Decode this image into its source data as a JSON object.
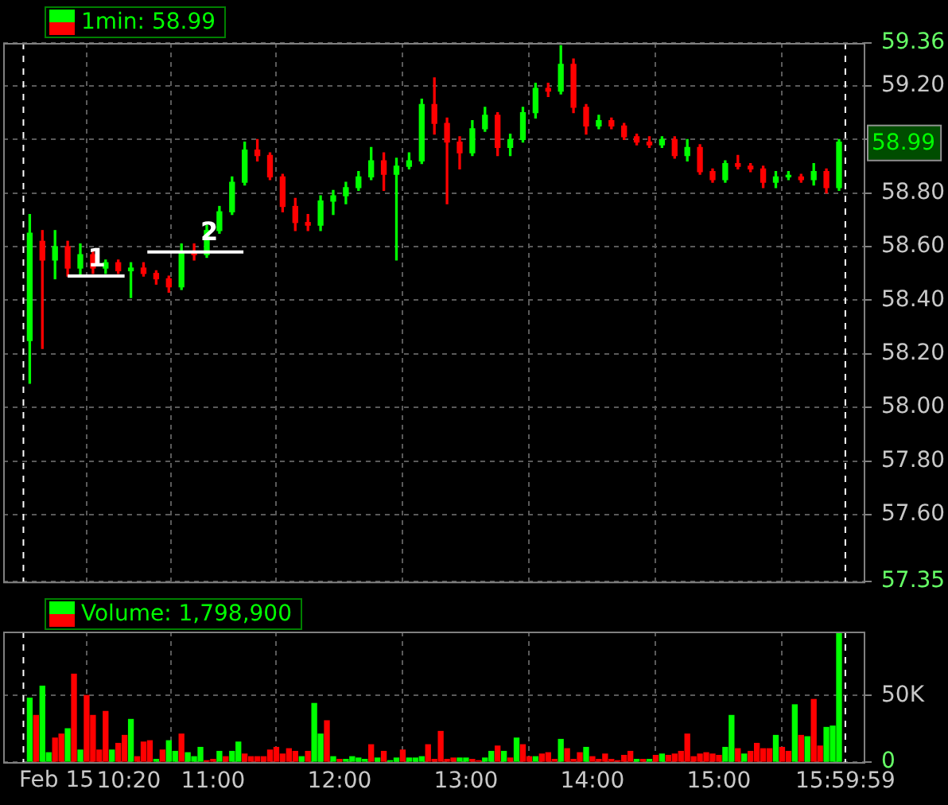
{
  "chart_data": [
    {
      "type": "candlestick",
      "title": "1min: 58.99",
      "x": [
        9.55,
        9.65,
        9.75,
        9.85,
        9.95,
        10.05,
        10.15,
        10.25,
        10.35,
        10.45,
        10.55,
        10.65,
        10.75,
        10.85,
        10.95,
        11.05,
        11.15,
        11.25,
        11.35,
        11.45,
        11.55,
        11.65,
        11.75,
        11.85,
        11.95,
        12.05,
        12.15,
        12.25,
        12.35,
        12.45,
        12.55,
        12.65,
        12.75,
        12.85,
        12.95,
        13.05,
        13.15,
        13.25,
        13.35,
        13.45,
        13.55,
        13.65,
        13.75,
        13.85,
        13.95,
        14.05,
        14.15,
        14.25,
        14.35,
        14.45,
        14.55,
        14.65,
        14.75,
        14.85,
        14.95,
        15.05,
        15.15,
        15.25,
        15.35,
        15.45,
        15.55,
        15.65,
        15.75,
        15.85,
        15.95
      ],
      "ohlc": [
        [
          58.25,
          58.72,
          58.09,
          58.65
        ],
        [
          58.62,
          58.66,
          58.22,
          58.55
        ],
        [
          58.55,
          58.66,
          58.48,
          58.6
        ],
        [
          58.6,
          58.62,
          58.49,
          58.52
        ],
        [
          58.52,
          58.61,
          58.49,
          58.57
        ],
        [
          58.57,
          58.58,
          58.5,
          58.52
        ],
        [
          58.52,
          58.55,
          58.5,
          58.54
        ],
        [
          58.54,
          58.55,
          58.5,
          58.51
        ],
        [
          58.51,
          58.54,
          58.41,
          58.52
        ],
        [
          58.52,
          58.54,
          58.49,
          58.5
        ],
        [
          58.5,
          58.51,
          58.46,
          58.48
        ],
        [
          58.48,
          58.49,
          58.43,
          58.45
        ],
        [
          58.45,
          58.61,
          58.44,
          58.58
        ],
        [
          58.58,
          58.61,
          58.55,
          58.57
        ],
        [
          58.57,
          58.68,
          58.56,
          58.66
        ],
        [
          58.66,
          58.75,
          58.65,
          58.73
        ],
        [
          58.73,
          58.86,
          58.72,
          58.84
        ],
        [
          58.84,
          58.99,
          58.83,
          58.96
        ],
        [
          58.96,
          59.0,
          58.92,
          58.94
        ],
        [
          58.94,
          58.95,
          58.85,
          58.86
        ],
        [
          58.86,
          58.87,
          58.73,
          58.75
        ],
        [
          58.75,
          58.78,
          58.66,
          58.69
        ],
        [
          58.69,
          58.72,
          58.66,
          58.68
        ],
        [
          58.68,
          58.79,
          58.66,
          58.77
        ],
        [
          58.77,
          58.81,
          58.72,
          58.79
        ],
        [
          58.79,
          58.84,
          58.76,
          58.82
        ],
        [
          58.82,
          58.88,
          58.81,
          58.86
        ],
        [
          58.86,
          58.97,
          58.85,
          58.92
        ],
        [
          58.92,
          58.95,
          58.81,
          58.87
        ],
        [
          58.87,
          58.93,
          58.55,
          58.9
        ],
        [
          58.9,
          58.95,
          58.89,
          58.92
        ],
        [
          58.92,
          59.15,
          58.91,
          59.13
        ],
        [
          59.13,
          59.23,
          59.02,
          59.06
        ],
        [
          59.06,
          59.08,
          58.76,
          58.99
        ],
        [
          58.99,
          59.01,
          58.89,
          58.95
        ],
        [
          58.95,
          59.07,
          58.94,
          59.04
        ],
        [
          59.04,
          59.12,
          59.03,
          59.09
        ],
        [
          59.09,
          59.1,
          58.94,
          58.97
        ],
        [
          58.97,
          59.02,
          58.94,
          59.0
        ],
        [
          59.0,
          59.12,
          58.99,
          59.1
        ],
        [
          59.1,
          59.21,
          59.08,
          59.19
        ],
        [
          59.19,
          59.21,
          59.16,
          59.18
        ],
        [
          59.18,
          59.35,
          59.17,
          59.28
        ],
        [
          59.28,
          59.3,
          59.1,
          59.12
        ],
        [
          59.12,
          59.13,
          59.02,
          59.05
        ],
        [
          59.05,
          59.09,
          59.04,
          59.07
        ],
        [
          59.07,
          59.08,
          59.04,
          59.05
        ],
        [
          59.05,
          59.06,
          59.0,
          59.01
        ],
        [
          59.01,
          59.02,
          58.98,
          58.99
        ],
        [
          58.99,
          59.01,
          58.97,
          58.98
        ],
        [
          58.98,
          59.01,
          58.97,
          59.0
        ],
        [
          59.0,
          59.01,
          58.93,
          58.94
        ],
        [
          58.94,
          59.0,
          58.92,
          58.97
        ],
        [
          58.97,
          58.98,
          58.87,
          58.88
        ],
        [
          58.88,
          58.89,
          58.84,
          58.85
        ],
        [
          58.85,
          58.92,
          58.84,
          58.91
        ],
        [
          58.91,
          58.94,
          58.89,
          58.9
        ],
        [
          58.9,
          58.91,
          58.88,
          58.89
        ],
        [
          58.89,
          58.9,
          58.82,
          58.84
        ],
        [
          58.84,
          58.88,
          58.82,
          58.86
        ],
        [
          58.86,
          58.88,
          58.85,
          58.86
        ],
        [
          58.86,
          58.87,
          58.84,
          58.85
        ],
        [
          58.85,
          58.91,
          58.83,
          58.88
        ],
        [
          58.88,
          58.89,
          58.8,
          58.82
        ],
        [
          58.82,
          59.0,
          58.81,
          58.99
        ]
      ],
      "colors": [
        "#00ff00",
        "#ff0000",
        "#00ff00",
        "#ff0000",
        "#00ff00",
        "#ff0000",
        "#00ff00",
        "#ff0000",
        "#00ff00",
        "#ff0000",
        "#ff0000",
        "#ff0000",
        "#00ff00",
        "#ff0000",
        "#00ff00",
        "#00ff00",
        "#00ff00",
        "#00ff00",
        "#ff0000",
        "#ff0000",
        "#ff0000",
        "#ff0000",
        "#ff0000",
        "#00ff00",
        "#00ff00",
        "#00ff00",
        "#00ff00",
        "#00ff00",
        "#ff0000",
        "#00ff00",
        "#00ff00",
        "#00ff00",
        "#ff0000",
        "#ff0000",
        "#ff0000",
        "#00ff00",
        "#00ff00",
        "#ff0000",
        "#00ff00",
        "#00ff00",
        "#00ff00",
        "#ff0000",
        "#00ff00",
        "#ff0000",
        "#ff0000",
        "#00ff00",
        "#ff0000",
        "#ff0000",
        "#ff0000",
        "#ff0000",
        "#00ff00",
        "#ff0000",
        "#00ff00",
        "#ff0000",
        "#ff0000",
        "#00ff00",
        "#ff0000",
        "#ff0000",
        "#ff0000",
        "#00ff00",
        "#00ff00",
        "#ff0000",
        "#00ff00",
        "#ff0000",
        "#00ff00"
      ],
      "series": [
        {
          "type": "line",
          "x": [
            9.85,
            10.3
          ],
          "values": [
            58.49,
            58.49
          ],
          "color": "#ffffff"
        },
        {
          "type": "line",
          "x": [
            10.48,
            11.24
          ],
          "values": [
            58.58,
            58.58
          ],
          "color": "#ffffff"
        }
      ],
      "annotations": [
        {
          "text": "1",
          "x": 10.08,
          "y": 58.55
        },
        {
          "text": "2",
          "x": 10.97,
          "y": 58.65
        },
        "58.99"
      ],
      "xlim": [
        9.34,
        16.145
      ],
      "xticks": [
        {
          "value": 10.333,
          "label": null
        },
        {
          "value": 11,
          "label": null
        },
        {
          "value": 12,
          "label": null
        },
        {
          "value": 13,
          "label": null
        },
        {
          "value": 14,
          "label": null
        },
        {
          "value": 15,
          "label": null
        },
        {
          "value": 15.9997,
          "label": null
        }
      ],
      "ylim": [
        57.35,
        59.36
      ],
      "yticks": [
        {
          "value": 59.36,
          "label": "59.36"
        },
        {
          "value": 59.2,
          "label": "59.20"
        },
        {
          "value": 59,
          "label": null
        },
        {
          "value": 58.8,
          "label": "58.80"
        },
        {
          "value": 58.6,
          "label": "58.60"
        },
        {
          "value": 58.4,
          "label": "58.40"
        },
        {
          "value": 58.2,
          "label": "58.20"
        },
        {
          "value": 58,
          "label": "58.00"
        },
        {
          "value": 57.8,
          "label": "57.80"
        },
        {
          "value": 57.6,
          "label": "57.60"
        },
        {
          "value": 57.35,
          "label": "57.35"
        }
      ],
      "ref_lines": [
        {
          "axis": "x",
          "value": 9.5,
          "color": "#ffffff",
          "line_style": "dashed"
        },
        {
          "axis": "x",
          "value": 16,
          "color": "#ffffff",
          "line_style": "dashed"
        }
      ],
      "grid": true,
      "tick_labels": "y"
    },
    {
      "type": "bar",
      "title": "Volume: 1,798,900",
      "x": [
        9.55,
        9.6,
        9.65,
        9.7,
        9.75,
        9.8,
        9.85,
        9.9,
        9.95,
        10,
        10.05,
        10.1,
        10.15,
        10.2,
        10.25,
        10.3,
        10.35,
        10.4,
        10.45,
        10.5,
        10.55,
        10.6,
        10.65,
        10.7,
        10.75,
        10.8,
        10.85,
        10.9,
        10.95,
        11,
        11.05,
        11.1,
        11.15,
        11.2,
        11.25,
        11.3,
        11.35,
        11.4,
        11.45,
        11.5,
        11.55,
        11.6,
        11.65,
        11.7,
        11.75,
        11.8,
        11.85,
        11.9,
        11.95,
        12,
        12.05,
        12.1,
        12.15,
        12.2,
        12.25,
        12.3,
        12.35,
        12.4,
        12.45,
        12.5,
        12.55,
        12.6,
        12.65,
        12.7,
        12.75,
        12.8,
        12.85,
        12.9,
        12.95,
        13,
        13.05,
        13.1,
        13.15,
        13.2,
        13.25,
        13.3,
        13.35,
        13.4,
        13.45,
        13.5,
        13.55,
        13.6,
        13.65,
        13.7,
        13.75,
        13.8,
        13.85,
        13.9,
        13.95,
        14,
        14.05,
        14.1,
        14.15,
        14.2,
        14.25,
        14.3,
        14.35,
        14.4,
        14.45,
        14.5,
        14.55,
        14.6,
        14.65,
        14.7,
        14.75,
        14.8,
        14.85,
        14.9,
        14.95,
        15,
        15.05,
        15.1,
        15.15,
        15.2,
        15.25,
        15.3,
        15.35,
        15.4,
        15.45,
        15.5,
        15.55,
        15.6,
        15.65,
        15.7,
        15.75,
        15.8,
        15.85,
        15.9,
        15.95
      ],
      "values": [
        48000,
        35000,
        57000,
        7000,
        18000,
        21000,
        25000,
        66000,
        9000,
        50000,
        35000,
        9000,
        38000,
        9000,
        14000,
        20000,
        32000,
        4000,
        15000,
        16000,
        2000,
        9000,
        16000,
        8000,
        21000,
        7000,
        4000,
        11000,
        1000,
        2000,
        8000,
        4000,
        8000,
        15000,
        6000,
        4000,
        4000,
        4000,
        9000,
        11000,
        6000,
        10000,
        8000,
        4000,
        8000,
        44000,
        21000,
        31000,
        4000,
        2000,
        2000,
        4000,
        3000,
        2000,
        13000,
        3000,
        8000,
        1000,
        3000,
        9000,
        3000,
        3000,
        4000,
        13000,
        2000,
        23000,
        2000,
        3000,
        3000,
        3000,
        2000,
        1000,
        3000,
        8000,
        12000,
        8000,
        3000,
        18000,
        13000,
        4000,
        4000,
        6000,
        7000,
        2000,
        17000,
        10000,
        2000,
        7000,
        11000,
        4000,
        2000,
        6000,
        2000,
        1000,
        5000,
        8000,
        2000,
        2000,
        2000,
        5000,
        6000,
        5000,
        6000,
        8000,
        21000,
        4000,
        6000,
        7000,
        6000,
        5000,
        11000,
        35000,
        10000,
        6000,
        8000,
        14000,
        10000,
        10000,
        20000,
        11000,
        8000,
        43000,
        20000,
        19000,
        47000,
        12000,
        26000,
        27000,
        97000
      ],
      "colors": [
        "#00ff00",
        "#ff0000",
        "#00ff00",
        "#00ff00",
        "#ff0000",
        "#ff0000",
        "#00ff00",
        "#ff0000",
        "#00ff00",
        "#ff0000",
        "#ff0000",
        "#ff0000",
        "#ff0000",
        "#00ff00",
        "#ff0000",
        "#ff0000",
        "#00ff00",
        "#ff0000",
        "#ff0000",
        "#ff0000",
        "#00ff00",
        "#ff0000",
        "#00ff00",
        "#00ff00",
        "#ff0000",
        "#00ff00",
        "#00ff00",
        "#00ff00",
        "#ff0000",
        "#ff0000",
        "#00ff00",
        "#ff0000",
        "#00ff00",
        "#00ff00",
        "#ff0000",
        "#ff0000",
        "#ff0000",
        "#ff0000",
        "#ff0000",
        "#ff0000",
        "#ff0000",
        "#ff0000",
        "#ff0000",
        "#00ff00",
        "#ff0000",
        "#00ff00",
        "#00ff00",
        "#ff0000",
        "#00ff00",
        "#ff0000",
        "#00ff00",
        "#00ff00",
        "#00ff00",
        "#00ff00",
        "#ff0000",
        "#00ff00",
        "#ff0000",
        "#00ff00",
        "#00ff00",
        "#ff0000",
        "#00ff00",
        "#00ff00",
        "#00ff00",
        "#ff0000",
        "#ff0000",
        "#ff0000",
        "#ff0000",
        "#ff0000",
        "#00ff00",
        "#00ff00",
        "#ff0000",
        "#ff0000",
        "#00ff00",
        "#00ff00",
        "#ff0000",
        "#00ff00",
        "#ff0000",
        "#00ff00",
        "#ff0000",
        "#ff0000",
        "#00ff00",
        "#ff0000",
        "#ff0000",
        "#ff0000",
        "#00ff00",
        "#ff0000",
        "#ff0000",
        "#ff0000",
        "#00ff00",
        "#ff0000",
        "#ff0000",
        "#ff0000",
        "#ff0000",
        "#ff0000",
        "#ff0000",
        "#ff0000",
        "#00ff00",
        "#ff0000",
        "#00ff00",
        "#ff0000",
        "#00ff00",
        "#ff0000",
        "#ff0000",
        "#ff0000",
        "#ff0000",
        "#ff0000",
        "#ff0000",
        "#ff0000",
        "#ff0000",
        "#ff0000",
        "#00ff00",
        "#00ff00",
        "#ff0000",
        "#00ff00",
        "#ff0000",
        "#ff0000",
        "#ff0000",
        "#ff0000",
        "#00ff00",
        "#ff0000",
        "#ff0000",
        "#00ff00",
        "#ff0000",
        "#00ff00",
        "#ff0000",
        "#ff0000",
        "#00ff00",
        "#00ff00",
        "#00ff00"
      ],
      "xlim": [
        9.34,
        16.145
      ],
      "annotations": [
        "Feb 15"
      ],
      "xticks": [
        {
          "value": 10.333,
          "label": "10:20"
        },
        {
          "value": 11,
          "label": "11:00"
        },
        {
          "value": 12,
          "label": "12:00"
        },
        {
          "value": 13,
          "label": "13:00"
        },
        {
          "value": 14,
          "label": "14:00"
        },
        {
          "value": 15,
          "label": "15:00"
        },
        {
          "value": 15.9997,
          "label": "15:59:59"
        }
      ],
      "ylim": [
        0,
        98000
      ],
      "yticks": [
        0,
        {
          "value": 50000,
          "label": "50K"
        }
      ],
      "ref_lines": [
        {
          "axis": "x",
          "value": 9.5,
          "color": "#ffffff",
          "line_style": "dashed"
        },
        {
          "axis": "x",
          "value": 16,
          "color": "#ffffff",
          "line_style": "dashed"
        }
      ],
      "grid": true
    }
  ]
}
